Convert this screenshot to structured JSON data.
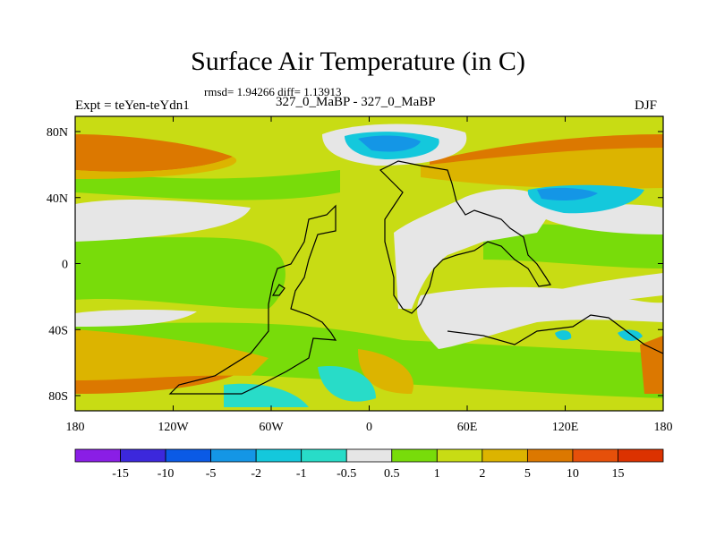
{
  "title": "Surface Air Temperature (in C)",
  "stats": "rmsd= 1.94266 diff= 1.13913",
  "experiment": "Expt = teYen-teYdn1",
  "cases": "327_0_MaBP - 327_0_MaBP",
  "season": "DJF",
  "axes": {
    "x_ticks": [
      "180",
      "120W",
      "60W",
      "0",
      "60E",
      "120E",
      "180"
    ],
    "y_ticks": [
      "80N",
      "40N",
      "0",
      "40S",
      "80S"
    ]
  },
  "colorbar": {
    "levels": [
      "-15",
      "-10",
      "-5",
      "-2",
      "-1",
      "-0.5",
      "0.5",
      "1",
      "2",
      "5",
      "10",
      "15"
    ],
    "colors": [
      "#8a1ee6",
      "#3c28dc",
      "#0a5ae6",
      "#1496e6",
      "#14c8dc",
      "#28dcc8",
      "#e6e6e6",
      "#78dc0a",
      "#c8dc14",
      "#dcb400",
      "#dc7800",
      "#e6500a",
      "#dc3200"
    ]
  },
  "regions": {
    "band_a": "#c8dc14",
    "band_b": "#78dc0a",
    "warm": "#dcb400",
    "hot": "#dc7800",
    "neutral": "#e6e6e6",
    "cool": "#28dcc8",
    "cold": "#14c8dc",
    "colder": "#1496e6"
  }
}
